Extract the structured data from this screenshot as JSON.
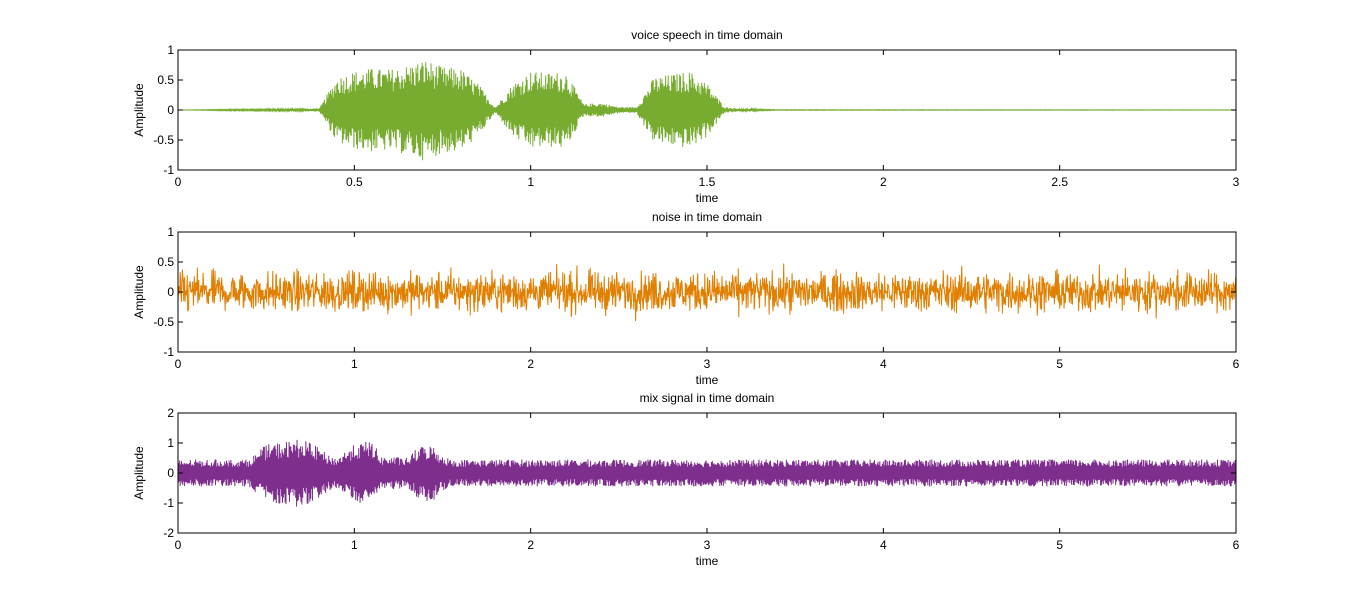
{
  "chart_data": [
    {
      "type": "line",
      "title": "voice speech in time domain",
      "xlabel": "time",
      "ylabel": "Amplitude",
      "xlim": [
        0,
        3
      ],
      "ylim": [
        -1,
        1
      ],
      "xticks": [
        0,
        0.5,
        1,
        1.5,
        2,
        2.5,
        3
      ],
      "yticks": [
        -1,
        -0.5,
        0,
        0.5,
        1
      ],
      "grid": false,
      "color": "#77ac30",
      "series": [
        {
          "signal": "speech",
          "x": [
            0,
            0.13,
            0.4,
            0.45,
            0.5,
            0.55,
            0.6,
            0.65,
            0.7,
            0.75,
            0.8,
            0.85,
            0.9,
            0.95,
            1.0,
            1.05,
            1.1,
            1.15,
            1.2,
            1.25,
            1.3,
            1.35,
            1.4,
            1.45,
            1.5,
            1.55,
            1.6,
            1.7,
            3.0
          ],
          "envelope": [
            0,
            0.01,
            0.02,
            0.55,
            0.65,
            0.7,
            0.68,
            0.75,
            0.85,
            0.72,
            0.7,
            0.45,
            0.05,
            0.45,
            0.65,
            0.62,
            0.65,
            0.1,
            0.12,
            0.05,
            0.05,
            0.55,
            0.6,
            0.65,
            0.45,
            0.05,
            0.02,
            0.005,
            0.003
          ]
        }
      ]
    },
    {
      "type": "line",
      "title": "noise in time domain",
      "xlabel": "time",
      "ylabel": "Amplitude",
      "xlim": [
        0,
        6
      ],
      "ylim": [
        -1,
        1
      ],
      "xticks": [
        0,
        1,
        2,
        3,
        4,
        5,
        6
      ],
      "yticks": [
        -1,
        -0.5,
        0,
        0.5,
        1
      ],
      "grid": false,
      "color": "#e07f00",
      "series": [
        {
          "signal": "noise",
          "x": [
            0,
            6
          ],
          "envelope": [
            0.38,
            0.38
          ],
          "peak": 0.52
        }
      ]
    },
    {
      "type": "line",
      "title": "mix signal in time domain",
      "xlabel": "time",
      "ylabel": "Amplitude",
      "xlim": [
        0,
        6
      ],
      "ylim": [
        -2,
        2
      ],
      "xticks": [
        0,
        1,
        2,
        3,
        4,
        5,
        6
      ],
      "yticks": [
        -2,
        -1,
        0,
        1,
        2
      ],
      "grid": false,
      "color": "#7e2f8e",
      "series": [
        {
          "signal": "mix",
          "x": [
            0,
            0.4,
            0.45,
            0.5,
            0.6,
            0.7,
            0.8,
            0.85,
            0.9,
            0.95,
            1.0,
            1.1,
            1.15,
            1.2,
            1.3,
            1.35,
            1.4,
            1.45,
            1.5,
            1.55,
            6.0
          ],
          "envelope": [
            0.45,
            0.45,
            0.7,
            0.95,
            1.05,
            1.15,
            0.85,
            0.6,
            0.5,
            0.75,
            0.95,
            1.1,
            0.55,
            0.55,
            0.5,
            0.8,
            0.95,
            0.9,
            0.6,
            0.45,
            0.45
          ]
        }
      ]
    }
  ]
}
